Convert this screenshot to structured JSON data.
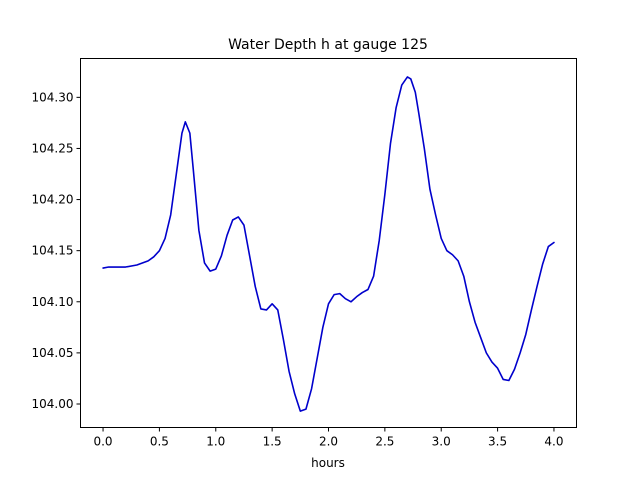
{
  "chart_data": {
    "type": "line",
    "title": "Water Depth h at gauge 125",
    "xlabel": "hours",
    "ylabel": "",
    "xlim": [
      -0.2,
      4.2
    ],
    "ylim": [
      103.977,
      104.338
    ],
    "xticks": [
      0.0,
      0.5,
      1.0,
      1.5,
      2.0,
      2.5,
      3.0,
      3.5,
      4.0
    ],
    "xtick_labels": [
      "0.0",
      "0.5",
      "1.0",
      "1.5",
      "2.0",
      "2.5",
      "3.0",
      "3.5",
      "4.0"
    ],
    "yticks": [
      104.0,
      104.05,
      104.1,
      104.15,
      104.2,
      104.25,
      104.3
    ],
    "ytick_labels": [
      "104.00",
      "104.05",
      "104.10",
      "104.15",
      "104.20",
      "104.25",
      "104.30"
    ],
    "grid": false,
    "series": [
      {
        "color": "#0000cc",
        "x": [
          0.0,
          0.05,
          0.1,
          0.2,
          0.3,
          0.4,
          0.45,
          0.5,
          0.55,
          0.6,
          0.65,
          0.7,
          0.73,
          0.77,
          0.8,
          0.85,
          0.9,
          0.95,
          1.0,
          1.05,
          1.1,
          1.15,
          1.2,
          1.25,
          1.3,
          1.35,
          1.4,
          1.45,
          1.5,
          1.55,
          1.6,
          1.65,
          1.7,
          1.75,
          1.8,
          1.85,
          1.9,
          1.95,
          2.0,
          2.05,
          2.1,
          2.15,
          2.2,
          2.25,
          2.3,
          2.35,
          2.4,
          2.45,
          2.5,
          2.55,
          2.6,
          2.65,
          2.7,
          2.73,
          2.77,
          2.8,
          2.85,
          2.9,
          2.95,
          3.0,
          3.05,
          3.1,
          3.15,
          3.2,
          3.25,
          3.3,
          3.35,
          3.4,
          3.45,
          3.5,
          3.55,
          3.6,
          3.65,
          3.7,
          3.75,
          3.8,
          3.85,
          3.9,
          3.95,
          4.0
        ],
        "y": [
          104.133,
          104.134,
          104.134,
          104.134,
          104.136,
          104.14,
          104.144,
          104.15,
          104.162,
          104.185,
          104.225,
          104.265,
          104.276,
          104.265,
          104.23,
          104.17,
          104.138,
          104.13,
          104.132,
          104.145,
          104.165,
          104.18,
          104.183,
          104.175,
          104.145,
          104.115,
          104.093,
          104.092,
          104.098,
          104.092,
          104.063,
          104.032,
          104.01,
          103.993,
          103.995,
          104.015,
          104.045,
          104.075,
          104.098,
          104.107,
          104.108,
          104.103,
          104.1,
          104.105,
          104.109,
          104.112,
          104.125,
          104.16,
          104.205,
          104.255,
          104.29,
          104.312,
          104.32,
          104.318,
          104.305,
          104.285,
          104.25,
          104.21,
          104.185,
          104.162,
          104.15,
          104.146,
          104.14,
          104.125,
          104.1,
          104.08,
          104.065,
          104.05,
          104.041,
          104.035,
          104.024,
          104.023,
          104.034,
          104.05,
          104.068,
          104.092,
          104.115,
          104.137,
          104.154,
          104.158
        ]
      }
    ]
  }
}
